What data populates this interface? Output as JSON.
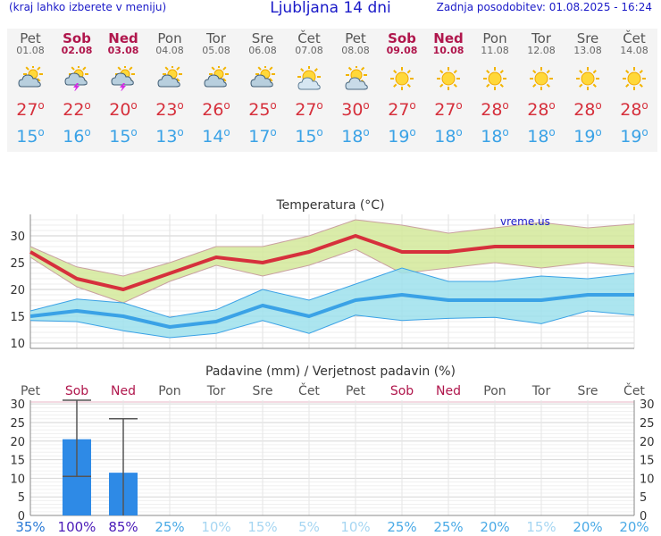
{
  "header": {
    "menu_hint": "(kraj lahko izberete v meniju)",
    "title": "Ljubljana 14 dni",
    "updated": "Zadnja posodobitev: 01.08.2025 - 16:24"
  },
  "days": [
    {
      "name": "Pet",
      "date": "01.08",
      "weekend": false,
      "icon": "cloud-sun-icon",
      "max": "27",
      "min": "15"
    },
    {
      "name": "Sob",
      "date": "02.08",
      "weekend": true,
      "icon": "thunderstorm-icon",
      "max": "22",
      "min": "16"
    },
    {
      "name": "Ned",
      "date": "03.08",
      "weekend": true,
      "icon": "thunderstorm-icon",
      "max": "20",
      "min": "15"
    },
    {
      "name": "Pon",
      "date": "04.08",
      "weekend": false,
      "icon": "cloud-sun-icon",
      "max": "23",
      "min": "13"
    },
    {
      "name": "Tor",
      "date": "05.08",
      "weekend": false,
      "icon": "cloud-sun-icon",
      "max": "26",
      "min": "14"
    },
    {
      "name": "Sre",
      "date": "06.08",
      "weekend": false,
      "icon": "cloud-sun-icon",
      "max": "25",
      "min": "17"
    },
    {
      "name": "Čet",
      "date": "07.08",
      "weekend": false,
      "icon": "sun-small-cloud-icon",
      "max": "27",
      "min": "15"
    },
    {
      "name": "Pet",
      "date": "08.08",
      "weekend": false,
      "icon": "sun-cloud-icon",
      "max": "30",
      "min": "18"
    },
    {
      "name": "Sob",
      "date": "09.08",
      "weekend": true,
      "icon": "sun-icon",
      "max": "27",
      "min": "19"
    },
    {
      "name": "Ned",
      "date": "10.08",
      "weekend": true,
      "icon": "sun-icon",
      "max": "27",
      "min": "18"
    },
    {
      "name": "Pon",
      "date": "11.08",
      "weekend": false,
      "icon": "sun-icon",
      "max": "28",
      "min": "18"
    },
    {
      "name": "Tor",
      "date": "12.08",
      "weekend": false,
      "icon": "sun-icon",
      "max": "28",
      "min": "18"
    },
    {
      "name": "Sre",
      "date": "13.08",
      "weekend": false,
      "icon": "sun-icon",
      "max": "28",
      "min": "19"
    },
    {
      "name": "Čet",
      "date": "14.08",
      "weekend": false,
      "icon": "sun-icon",
      "max": "28",
      "min": "19"
    }
  ],
  "degree_symbol": "o",
  "colors": {
    "max_temp": "#d6303c",
    "min_temp": "#3aa2e6",
    "weekend": "#b0164c",
    "header": "#1a1ac8",
    "max_band": "#d4e99a",
    "min_band": "#9ee0ec",
    "bar": "#2e8ae6"
  },
  "chart_data": [
    {
      "type": "line",
      "title": "Temperatura (°C)",
      "watermark": "vreme.us",
      "x": [
        "01.08",
        "02.08",
        "03.08",
        "04.08",
        "05.08",
        "06.08",
        "07.08",
        "08.08",
        "09.08",
        "10.08",
        "11.08",
        "12.08",
        "13.08",
        "14.08"
      ],
      "ylim": [
        9,
        34
      ],
      "yticks": [
        10,
        15,
        20,
        25,
        30
      ],
      "grid": true,
      "series": [
        {
          "values": [
            27,
            22,
            20,
            23,
            26,
            25,
            27,
            30,
            27,
            27,
            28,
            28,
            28,
            28
          ],
          "upper": [
            28,
            24.2,
            22.5,
            25,
            28,
            28,
            30,
            33,
            32,
            30.5,
            31.5,
            32.5,
            31.5,
            32.2
          ],
          "lower": [
            26,
            20.5,
            17.5,
            21.5,
            24.5,
            22.5,
            24.5,
            27.5,
            23,
            24,
            25,
            24,
            25,
            24.2
          ]
        },
        {
          "values": [
            15,
            16,
            15,
            13,
            14,
            17,
            15,
            18,
            19,
            18,
            18,
            18,
            19,
            19
          ],
          "upper": [
            16,
            18.2,
            17.5,
            14.8,
            16.2,
            20,
            18,
            21,
            24,
            21.5,
            21.5,
            22.5,
            22,
            23
          ],
          "lower": [
            14.2,
            14,
            12.3,
            11,
            11.8,
            14.2,
            11.8,
            15.2,
            14.2,
            14.6,
            14.8,
            13.6,
            16,
            15.2
          ]
        }
      ]
    },
    {
      "type": "bar",
      "title": "Padavine (mm) / Verjetnost padavin (%)",
      "categories": [
        "Pet",
        "Sob",
        "Ned",
        "Pon",
        "Tor",
        "Sre",
        "Čet",
        "Pet",
        "Sob",
        "Ned",
        "Pon",
        "Tor",
        "Sre",
        "Čet"
      ],
      "weekend": [
        false,
        true,
        true,
        false,
        false,
        false,
        false,
        false,
        true,
        true,
        false,
        false,
        false,
        false
      ],
      "values": [
        0,
        20.5,
        11.5,
        0,
        0,
        0,
        0,
        0,
        0,
        0,
        0,
        0,
        0,
        0
      ],
      "error_low": [
        0,
        10.5,
        0,
        0,
        0,
        0,
        0,
        0,
        0,
        0,
        0,
        0,
        0,
        0
      ],
      "error_high": [
        0,
        31,
        26,
        0,
        0,
        0,
        0,
        0,
        0,
        0,
        0,
        0,
        0,
        0
      ],
      "probability": [
        "35%",
        "100%",
        "85%",
        "25%",
        "10%",
        "15%",
        "5%",
        "10%",
        "25%",
        "25%",
        "20%",
        "15%",
        "20%",
        "20%"
      ],
      "ylim": [
        0,
        31
      ],
      "yticks": [
        0,
        5,
        10,
        15,
        20,
        25,
        30
      ]
    }
  ]
}
